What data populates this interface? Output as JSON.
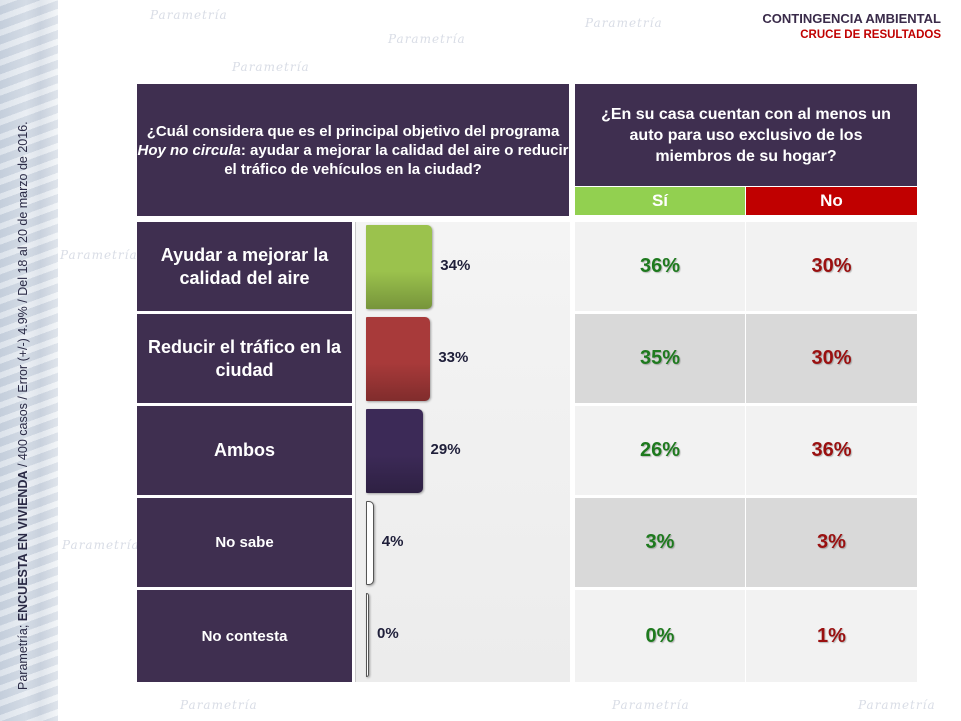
{
  "header": {
    "title": "CONTINGENCIA AMBIENTAL",
    "subtitle": "CRUCE DE RESULTADOS"
  },
  "watermark": "Parametría",
  "side_note": {
    "prefix": "Parametría; ",
    "bold": "ENCUESTA EN VIVIENDA",
    "suffix": " / 400 casos / Error (+/-) 4.9% / Del 18 al 20 de marzo de 2016."
  },
  "left_question": {
    "part1": "¿Cuál considera que es el principal objetivo del programa ",
    "italic": "Hoy no circula",
    "part2": ": ayudar a mejorar la calidad del aire o reducir el tráfico de vehículos en la ciudad?"
  },
  "right_question": "¿En su casa cuentan con al menos un auto para uso exclusivo de los miembros de su hogar?",
  "columns": {
    "si": "Sí",
    "no": "No"
  },
  "colors": {
    "panel": "#3f2f50",
    "si": "#92d050",
    "no": "#c00000"
  },
  "chart_data": {
    "type": "bar",
    "orientation": "horizontal",
    "categories": [
      "Ayudar a mejorar la calidad del aire",
      "Reducir el tráfico en la ciudad",
      "Ambos",
      "No sabe",
      "No contesta"
    ],
    "values": [
      34,
      33,
      29,
      4,
      0
    ],
    "value_labels": [
      "34%",
      "33%",
      "29%",
      "4%",
      "0%"
    ],
    "bar_colors": [
      "#9bc24d",
      "#a83a3a",
      "#3c2a57",
      "#ffffff",
      "#ffffff"
    ],
    "unit": "%"
  },
  "cross_table": {
    "si": [
      "36%",
      "35%",
      "26%",
      "3%",
      "0%"
    ],
    "no": [
      "30%",
      "30%",
      "36%",
      "3%",
      "1%"
    ]
  }
}
